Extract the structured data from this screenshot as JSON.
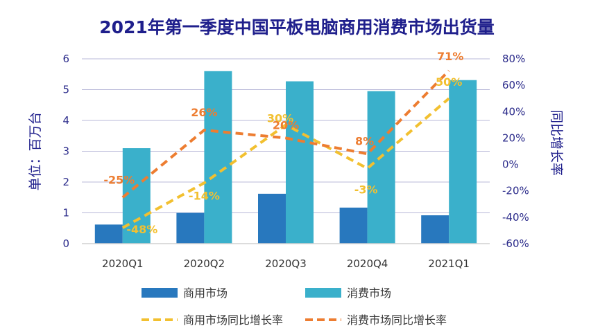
{
  "chart_data": {
    "type": "bar",
    "title": "2021年第一季度中国平板电脑商用消费市场出货量",
    "ylabel": "单位：百万台",
    "y2label": "同比增长率",
    "categories": [
      "2020Q1",
      "2020Q2",
      "2020Q3",
      "2020Q4",
      "2021Q1"
    ],
    "ylim": [
      0,
      6
    ],
    "yticks": [
      0,
      1,
      2,
      3,
      4,
      5,
      6
    ],
    "y2lim": [
      -60,
      80
    ],
    "y2ticks": [
      "-60%",
      "-40%",
      "-20%",
      "0%",
      "20%",
      "40%",
      "60%",
      "80%"
    ],
    "y2tick_values": [
      -60,
      -40,
      -20,
      0,
      20,
      40,
      60,
      80
    ],
    "series": [
      {
        "name": "商用市场",
        "kind": "bar",
        "axis": "left",
        "color": "#2878BE",
        "values": [
          0.62,
          1.0,
          1.62,
          1.17,
          0.92
        ]
      },
      {
        "name": "消费市场",
        "kind": "bar",
        "axis": "left",
        "color": "#3AB0CB",
        "values": [
          3.1,
          5.6,
          5.27,
          4.95,
          5.31
        ]
      },
      {
        "name": "商用市场同比增长率",
        "kind": "line",
        "axis": "right",
        "color": "#F2C030",
        "dashed": true,
        "values": [
          -48,
          -14,
          30,
          -3,
          50
        ],
        "labels": [
          "-48%",
          "-14%",
          "30%",
          "-3%",
          "50%"
        ]
      },
      {
        "name": "消费市场同比增长率",
        "kind": "line",
        "axis": "right",
        "color": "#ED7D31",
        "dashed": true,
        "values": [
          -25,
          26,
          20,
          8,
          71
        ],
        "labels": [
          "-25%",
          "26%",
          "20%",
          "8%",
          "71%"
        ]
      }
    ],
    "colors": {
      "title": "#1F1F8C",
      "axis_text": "#2A2A8A",
      "grid": "#B8B8D8",
      "axis_line": "#D0D0D0"
    },
    "legend_position": "bottom",
    "grid": true
  }
}
